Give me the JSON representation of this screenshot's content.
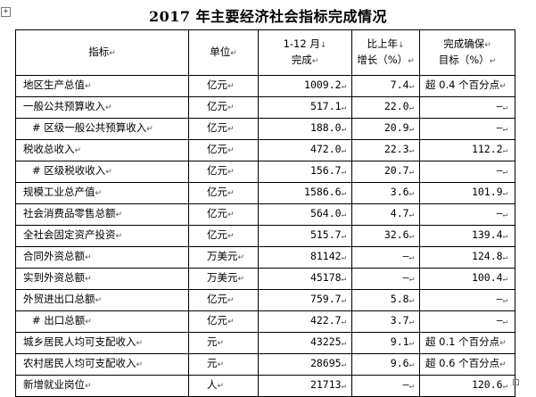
{
  "title": "2017 年主要经济社会指标完成情况",
  "header": {
    "name": "指标",
    "unit": "单位",
    "period_line1": "1-12 月",
    "period_line2": "完成",
    "growth_line1": "比上年",
    "growth_line2": "增长（%）",
    "target_line1": "完成确保",
    "target_line2": "目标（%）"
  },
  "rows": [
    {
      "name": "地区生产总值",
      "unit": "亿元",
      "value": "1009.2",
      "growth": "7.4",
      "target": "超 0.4 个百分点",
      "indent": false
    },
    {
      "name": "一般公共预算收入",
      "unit": "亿元",
      "value": "517.1",
      "growth": "22.0",
      "target": "—",
      "indent": false
    },
    {
      "name": "# 区级一般公共预算收入",
      "unit": "亿元",
      "value": "188.0",
      "growth": "20.9",
      "target": "—",
      "indent": true
    },
    {
      "name": "税收总收入",
      "unit": "亿元",
      "value": "472.0",
      "growth": "22.3",
      "target": "112.2",
      "indent": false
    },
    {
      "name": "# 区级税收收入",
      "unit": "亿元",
      "value": "156.7",
      "growth": "20.7",
      "target": "—",
      "indent": true
    },
    {
      "name": "规模工业总产值",
      "unit": "亿元",
      "value": "1586.6",
      "growth": "3.6",
      "target": "101.9",
      "indent": false
    },
    {
      "name": "社会消费品零售总额",
      "unit": "亿元",
      "value": "564.0",
      "growth": "4.7",
      "target": "—",
      "indent": false
    },
    {
      "name": "全社会固定资产投资",
      "unit": "亿元",
      "value": "515.7",
      "growth": "32.6",
      "target": "139.4",
      "indent": false
    },
    {
      "name": "合同外资总额",
      "unit": "万美元",
      "value": "81142",
      "growth": "—",
      "target": "124.8",
      "indent": false
    },
    {
      "name": "实到外资总额",
      "unit": "万美元",
      "value": "45178",
      "growth": "—",
      "target": "100.4",
      "indent": false
    },
    {
      "name": "外贸进出口总额",
      "unit": "亿元",
      "value": "759.7",
      "growth": "5.8",
      "target": "—",
      "indent": false
    },
    {
      "name": "# 出口总额",
      "unit": "亿元",
      "value": "422.7",
      "growth": "3.7",
      "target": "—",
      "indent": true
    },
    {
      "name": "城乡居民人均可支配收入",
      "unit": "元",
      "value": "43225",
      "growth": "9.1",
      "target": "超 0.1 个百分点",
      "indent": false
    },
    {
      "name": "农村居民人均可支配收入",
      "unit": "元",
      "value": "28695",
      "growth": "9.6",
      "target": "超 0.6 个百分点",
      "indent": false
    },
    {
      "name": "新增就业岗位",
      "unit": "人",
      "value": "21713",
      "growth": "—",
      "target": "120.6",
      "indent": false
    }
  ]
}
